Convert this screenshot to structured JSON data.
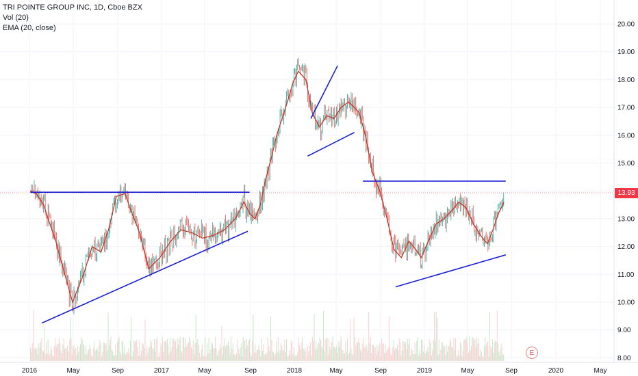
{
  "legend": {
    "title": "TRI POINTE GROUP INC, 1D, Cboe BZX",
    "volume": "Vol (20)",
    "ema": "EMA (20, close)"
  },
  "price_label": "13.93",
  "earnings_marker": "E",
  "colors": {
    "up": "#26a69a",
    "down": "#ef5350",
    "ema": "#c0392b",
    "trendline": "#1a1fd4",
    "last_price_line": "#f23645",
    "grid": "#f0f3fa",
    "volume_up": "#c8e6c9",
    "volume_down": "#ffcdd2"
  },
  "chart_data": {
    "type": "line",
    "title": "TRI POINTE GROUP INC, 1D, Cboe BZX",
    "y_ticks": [
      8,
      9,
      10,
      11,
      12,
      13,
      14,
      15,
      16,
      17,
      18,
      19,
      20
    ],
    "ylim": [
      7.8,
      20.8
    ],
    "x_ticks": [
      "2016",
      "May",
      "Sep",
      "2017",
      "May",
      "Sep",
      "2018",
      "May",
      "Sep",
      "2019",
      "May",
      "Sep",
      "2020",
      "May"
    ],
    "last_price": 13.93,
    "grid": true,
    "series": [
      {
        "name": "EMA (20, close)",
        "x": [
          "2016-01-04",
          "2016-01-20",
          "2016-02-10",
          "2016-02-25",
          "2016-03-15",
          "2016-04-05",
          "2016-05-01",
          "2016-06-01",
          "2016-06-25",
          "2016-07-20",
          "2016-08-10",
          "2016-09-01",
          "2016-09-25",
          "2016-10-15",
          "2016-11-05",
          "2016-12-01",
          "2017-01-01",
          "2017-02-01",
          "2017-03-01",
          "2017-04-01",
          "2017-05-01",
          "2017-06-01",
          "2017-07-01",
          "2017-08-01",
          "2017-08-25",
          "2017-09-10",
          "2017-09-25",
          "2017-10-10",
          "2017-10-25",
          "2017-11-10",
          "2017-11-25",
          "2017-12-10",
          "2017-12-25",
          "2018-01-10",
          "2018-01-25",
          "2018-02-15",
          "2018-03-05",
          "2018-03-25",
          "2018-04-15",
          "2018-05-05",
          "2018-05-25",
          "2018-06-15",
          "2018-07-01",
          "2018-07-15",
          "2018-08-01",
          "2018-08-20",
          "2018-09-10",
          "2018-10-01",
          "2018-10-20",
          "2018-11-10",
          "2018-12-01",
          "2018-12-20",
          "2019-01-05",
          "2019-01-25",
          "2019-02-15",
          "2019-03-10",
          "2019-04-01",
          "2019-04-20",
          "2019-05-10",
          "2019-06-01",
          "2019-06-20",
          "2019-07-10",
          "2019-07-25",
          "2019-08-10",
          "2019-08-25"
        ],
        "values": [
          14.0,
          13.9,
          13.5,
          12.9,
          12.2,
          11.2,
          10.0,
          11.0,
          12.0,
          11.8,
          12.6,
          13.8,
          13.9,
          13.2,
          12.5,
          11.2,
          11.6,
          12.2,
          12.6,
          12.5,
          12.3,
          12.4,
          12.6,
          13.0,
          13.6,
          13.2,
          13.0,
          13.5,
          14.4,
          15.2,
          16.0,
          16.6,
          17.2,
          17.9,
          18.3,
          18.0,
          16.8,
          16.3,
          16.7,
          16.6,
          17.0,
          17.2,
          17.0,
          16.8,
          16.0,
          14.7,
          14.0,
          13.0,
          11.9,
          11.6,
          12.2,
          11.9,
          11.6,
          12.2,
          12.8,
          13.0,
          13.3,
          13.6,
          13.4,
          12.8,
          12.4,
          12.1,
          12.6,
          13.2,
          13.6
        ]
      }
    ],
    "trendlines": [
      {
        "from": [
          "2016-01-04",
          13.95
        ],
        "to": [
          "2017-09-10",
          13.95
        ]
      },
      {
        "from": [
          "2016-02-05",
          9.25
        ],
        "to": [
          "2017-09-05",
          12.55
        ]
      },
      {
        "from": [
          "2018-02-20",
          15.25
        ],
        "to": [
          "2018-07-01",
          16.1
        ]
      },
      {
        "from": [
          "2018-03-01",
          16.6
        ],
        "to": [
          "2018-05-15",
          18.5
        ]
      },
      {
        "from": [
          "2018-07-25",
          14.35
        ],
        "to": [
          "2019-08-30",
          14.35
        ]
      },
      {
        "from": [
          "2018-10-25",
          10.55
        ],
        "to": [
          "2019-08-30",
          11.7
        ]
      }
    ]
  }
}
